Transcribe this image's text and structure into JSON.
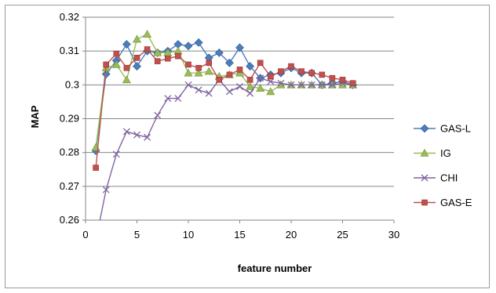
{
  "chart_data": {
    "type": "line",
    "title": "",
    "xlabel": "feature number",
    "ylabel": "MAP",
    "xlim": [
      0,
      30
    ],
    "ylim": [
      0.26,
      0.32
    ],
    "xticks": [
      "0",
      "5",
      "10",
      "15",
      "20",
      "25",
      "30"
    ],
    "yticks": [
      "0.26",
      "0.27",
      "0.28",
      "0.29",
      "0.3",
      "0.31",
      "0.32"
    ],
    "grid": "horizontal",
    "legend": "right",
    "series": [
      {
        "name": "GAS-L",
        "marker": "diamond",
        "color": "#4a7ebb",
        "x": [
          1,
          2,
          3,
          4,
          5,
          6,
          7,
          8,
          9,
          10,
          11,
          12,
          13,
          14,
          15,
          16,
          17,
          18,
          19,
          20,
          21,
          22,
          23,
          24,
          25,
          26
        ],
        "values": [
          0.2805,
          0.3032,
          0.3072,
          0.312,
          0.3055,
          0.31,
          0.3095,
          0.31,
          0.312,
          0.3115,
          0.3125,
          0.308,
          0.3095,
          0.3065,
          0.311,
          0.3055,
          0.302,
          0.303,
          0.3035,
          0.305,
          0.3035,
          0.3035,
          0.3,
          0.3005,
          0.301,
          0.3
        ]
      },
      {
        "name": "IG",
        "marker": "triangle",
        "color": "#9bbb59",
        "x": [
          1,
          2,
          3,
          4,
          5,
          6,
          7,
          8,
          9,
          10,
          11,
          12,
          13,
          14,
          15,
          16,
          17,
          18,
          19,
          20,
          21,
          22,
          23,
          24,
          25,
          26
        ],
        "values": [
          0.2815,
          0.305,
          0.306,
          0.3015,
          0.3135,
          0.315,
          0.3095,
          0.3095,
          0.31,
          0.3035,
          0.3035,
          0.304,
          0.3025,
          0.303,
          0.3035,
          0.2995,
          0.299,
          0.298,
          0.3,
          0.3,
          0.3,
          0.3,
          0.3,
          0.3,
          0.3,
          0.3
        ]
      },
      {
        "name": "CHI",
        "marker": "x",
        "color": "#8064a2",
        "x": [
          1,
          2,
          3,
          4,
          5,
          6,
          7,
          8,
          9,
          10,
          11,
          12,
          13,
          14,
          15,
          16,
          17,
          18,
          19,
          20,
          21,
          22,
          23,
          24,
          25,
          26
        ],
        "values": [
          0.254,
          0.269,
          0.2795,
          0.2862,
          0.2852,
          0.2845,
          0.291,
          0.296,
          0.296,
          0.3,
          0.2985,
          0.2975,
          0.3015,
          0.298,
          0.2995,
          0.2975,
          0.302,
          0.301,
          0.3005,
          0.3,
          0.3,
          0.3,
          0.3,
          0.3,
          0.3005,
          0.3
        ]
      },
      {
        "name": "GAS-E",
        "marker": "square",
        "color": "#c0504d",
        "x": [
          1,
          2,
          3,
          4,
          5,
          6,
          7,
          8,
          9,
          10,
          11,
          12,
          13,
          14,
          15,
          16,
          17,
          18,
          19,
          20,
          21,
          22,
          23,
          24,
          25,
          26
        ],
        "values": [
          0.2755,
          0.306,
          0.3092,
          0.305,
          0.308,
          0.3105,
          0.307,
          0.3078,
          0.3085,
          0.306,
          0.305,
          0.3065,
          0.3015,
          0.303,
          0.3045,
          0.3015,
          0.3065,
          0.3025,
          0.304,
          0.3055,
          0.304,
          0.3035,
          0.303,
          0.302,
          0.3015,
          0.3005
        ]
      }
    ]
  }
}
